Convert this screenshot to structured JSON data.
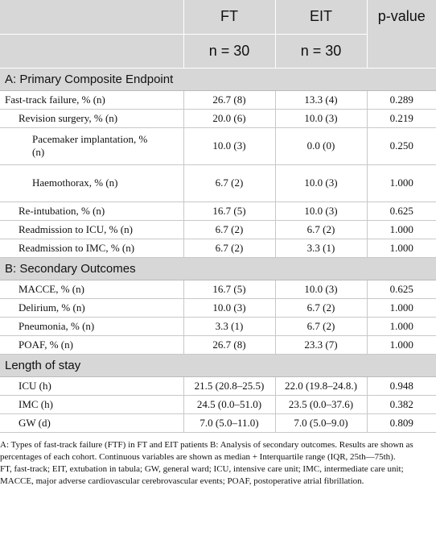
{
  "header": {
    "col1": "FT",
    "col2": "EIT",
    "col3": "p-value",
    "n1": "n = 30",
    "n2": "n = 30"
  },
  "sections": [
    {
      "title": "A: Primary Composite Endpoint",
      "rows": [
        {
          "label": "Fast-track failure, % (n)",
          "ft": "26.7 (8)",
          "eit": "13.3 (4)",
          "p": "0.289",
          "rows": [
            {
              "label": "Revision surgery, % (n)",
              "ft": "20.0 (6)",
              "eit": "10.0 (3)",
              "p": "0.219",
              "rows": [
                {
                  "label": "Pacemaker implantation, % (n)",
                  "ft": "10.0 (3)",
                  "eit": "0.0 (0)",
                  "p": "0.250"
                },
                {
                  "label": "Haemothorax, % (n)",
                  "ft": "6.7 (2)",
                  "eit": "10.0 (3)",
                  "p": "1.000"
                }
              ]
            },
            {
              "label": "Re-intubation, % (n)",
              "ft": "16.7 (5)",
              "eit": "10.0 (3)",
              "p": "0.625"
            },
            {
              "label": "Readmission to ICU, % (n)",
              "ft": "6.7 (2)",
              "eit": "6.7 (2)",
              "p": "1.000"
            },
            {
              "label": "Readmission to IMC, % (n)",
              "ft": "6.7 (2)",
              "eit": "3.3 (1)",
              "p": "1.000"
            }
          ]
        }
      ]
    },
    {
      "title": "B: Secondary Outcomes",
      "rows": [
        {
          "label": "MACCE, % (n)",
          "ft": "16.7 (5)",
          "eit": "10.0 (3)",
          "p": "0.625"
        },
        {
          "label": "Delirium, % (n)",
          "ft": "10.0 (3)",
          "eit": "6.7 (2)",
          "p": "1.000"
        },
        {
          "label": "Pneumonia, % (n)",
          "ft": "3.3 (1)",
          "eit": "6.7 (2)",
          "p": "1.000"
        },
        {
          "label": "POAF, % (n)",
          "ft": "26.7 (8)",
          "eit": "23.3 (7)",
          "p": "1.000"
        }
      ]
    },
    {
      "title": "Length of stay",
      "rows": [
        {
          "label": "ICU (h)",
          "ft": "21.5 (20.8–25.5)",
          "eit": "22.0 (19.8–24.8.)",
          "p": "0.948"
        },
        {
          "label": "IMC (h)",
          "ft": "24.5 (0.0–51.0)",
          "eit": "23.5 (0.0–37.6)",
          "p": "0.382"
        },
        {
          "label": "GW (d)",
          "ft": "7.0 (5.0–11.0)",
          "eit": "7.0 (5.0–9.0)",
          "p": "0.809"
        }
      ]
    }
  ],
  "footnotes": [
    "A: Types of fast-track failure (FTF) in FT and EIT patients B: Analysis of secondary outcomes. Results are shown as percentages of each cohort. Continuous variables are shown as median + Interquartile range (IQR, 25th—75th).",
    "FT, fast-track; EIT, extubation in tabula; GW, general ward; ICU, intensive care unit; IMC, intermediate care unit; MACCE, major adverse cardiovascular cerebrovascular events; POAF, postoperative atrial fibrillation."
  ]
}
